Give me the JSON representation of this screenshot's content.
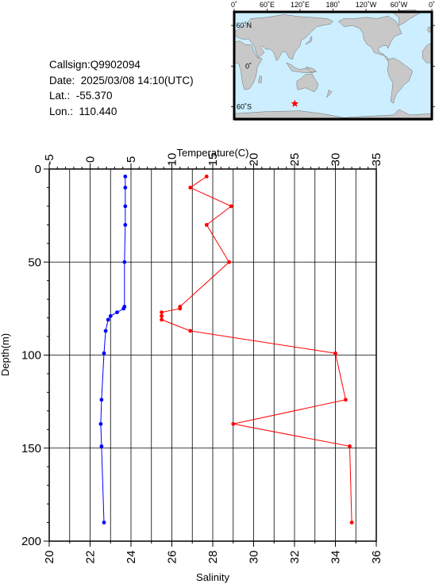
{
  "info": {
    "callsign": "Callsign:Q9902094",
    "date": "Date:  2025/03/08 14:10(UTC)",
    "lat": "Lat.:  -55.370",
    "lon": "Lon.:  110.440"
  },
  "map": {
    "lon_labels": [
      "0˚",
      "60˚E",
      "120˚E",
      "180˚",
      "120˚W",
      "60˚W",
      "0˚"
    ],
    "lat_labels": [
      "60˚N",
      "0˚",
      "60˚S"
    ],
    "marker_lat": -55.37,
    "marker_lon": 110.44,
    "colors": {
      "ocean": "#cceeff",
      "land": "#c8c8c8",
      "marker": "#ff0000"
    }
  },
  "chart_data": {
    "type": "line",
    "ylabel": "Depth(m)",
    "ylim": [
      200,
      0
    ],
    "y_ticks": [
      0,
      50,
      100,
      150,
      200
    ],
    "temperature_axis": {
      "label": "Temperature(C)",
      "xlim": [
        -5,
        35
      ],
      "ticks": [
        -5,
        0,
        5,
        10,
        15,
        20,
        25,
        30,
        35
      ]
    },
    "salinity_axis": {
      "label": "Salinity",
      "xlim": [
        20,
        36
      ],
      "ticks": [
        20,
        22,
        24,
        26,
        28,
        30,
        32,
        34,
        36
      ]
    },
    "grid": true,
    "series": [
      {
        "axis": "temperature",
        "color": "#0000ff",
        "points": [
          [
            4.3,
            4
          ],
          [
            4.3,
            10
          ],
          [
            4.3,
            20
          ],
          [
            4.3,
            30
          ],
          [
            4.2,
            50
          ],
          [
            4.2,
            74
          ],
          [
            4.1,
            75
          ],
          [
            3.3,
            77
          ],
          [
            2.5,
            79
          ],
          [
            2.2,
            81
          ],
          [
            1.9,
            87
          ],
          [
            1.7,
            99
          ],
          [
            1.4,
            124
          ],
          [
            1.3,
            137
          ],
          [
            1.4,
            149
          ],
          [
            1.7,
            190
          ]
        ]
      },
      {
        "axis": "salinity",
        "color": "#ff0000",
        "points": [
          [
            27.7,
            4
          ],
          [
            26.9,
            10
          ],
          [
            28.9,
            20
          ],
          [
            27.7,
            30
          ],
          [
            28.8,
            50
          ],
          [
            26.4,
            74
          ],
          [
            26.4,
            75
          ],
          [
            25.5,
            77
          ],
          [
            25.5,
            79
          ],
          [
            25.5,
            81
          ],
          [
            26.9,
            87
          ],
          [
            34.0,
            99
          ],
          [
            34.5,
            124
          ],
          [
            29.0,
            137
          ],
          [
            34.7,
            149
          ],
          [
            34.8,
            190
          ]
        ]
      }
    ]
  }
}
